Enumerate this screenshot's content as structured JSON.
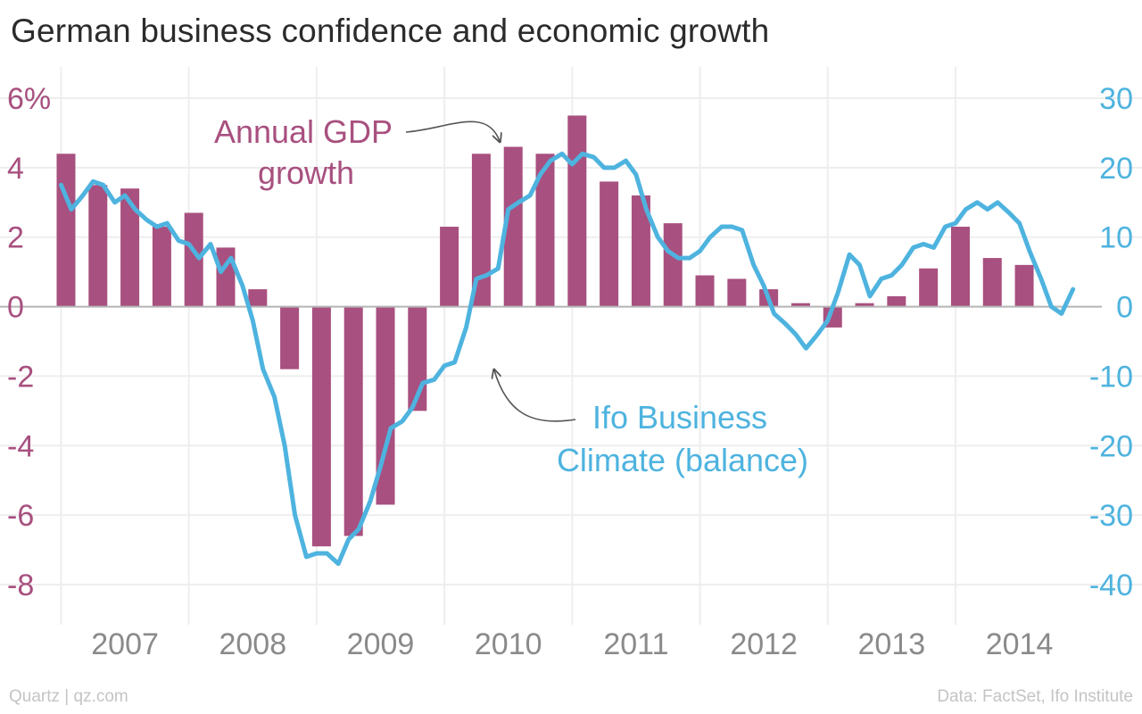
{
  "title": "German business confidence and economic growth",
  "footer": {
    "left": "Quartz | qz.com",
    "right": "Data: FactSet, Ifo Institute"
  },
  "colors": {
    "gdp": "#a8507f",
    "ifo": "#4eb3df",
    "grid": "#eeeeee",
    "zero": "#b5b5b5",
    "tick": "#8a8a8a"
  },
  "chart_data": {
    "type": "bar+line",
    "x_range": [
      2006.85,
      2014.95
    ],
    "x_ticks": [
      {
        "label": "2007",
        "x": 2007
      },
      {
        "label": "2008",
        "x": 2008
      },
      {
        "label": "2009",
        "x": 2009
      },
      {
        "label": "2010",
        "x": 2010
      },
      {
        "label": "2011",
        "x": 2011
      },
      {
        "label": "2012",
        "x": 2012
      },
      {
        "label": "2013",
        "x": 2013
      },
      {
        "label": "2014",
        "x": 2014
      }
    ],
    "y_left": {
      "range": [
        -9,
        6
      ],
      "ticks": [
        6,
        4,
        2,
        0,
        -2,
        -4,
        -6,
        -8
      ],
      "labels": [
        "6%",
        "4",
        "2",
        "0",
        "-2",
        "-4",
        "-6",
        "-8"
      ]
    },
    "y_right": {
      "range": [
        -45,
        30
      ],
      "ticks": [
        30,
        20,
        10,
        0,
        -10,
        -20,
        -30,
        -40
      ],
      "labels": [
        "30",
        "20",
        "10",
        "0",
        "-10",
        "-20",
        "-30",
        "-40"
      ]
    },
    "annotations": [
      {
        "series": "gdp",
        "lines": [
          "Annual GDP",
          "growth"
        ]
      },
      {
        "series": "ifo",
        "lines": [
          "Ifo Business",
          "Climate (balance)"
        ]
      }
    ],
    "series": [
      {
        "name": "Annual GDP growth",
        "key": "gdp",
        "type": "bar",
        "axis": "left",
        "points": [
          [
            2007.0,
            4.4
          ],
          [
            2007.25,
            3.5
          ],
          [
            2007.5,
            3.4
          ],
          [
            2007.75,
            2.3
          ],
          [
            2008.0,
            2.7
          ],
          [
            2008.25,
            1.7
          ],
          [
            2008.5,
            0.5
          ],
          [
            2008.75,
            -1.8
          ],
          [
            2009.0,
            -6.9
          ],
          [
            2009.25,
            -6.6
          ],
          [
            2009.5,
            -5.7
          ],
          [
            2009.75,
            -3.0
          ],
          [
            2010.0,
            2.3
          ],
          [
            2010.25,
            4.4
          ],
          [
            2010.5,
            4.6
          ],
          [
            2010.75,
            4.4
          ],
          [
            2011.0,
            5.5
          ],
          [
            2011.25,
            3.6
          ],
          [
            2011.5,
            3.2
          ],
          [
            2011.75,
            2.4
          ],
          [
            2012.0,
            0.9
          ],
          [
            2012.25,
            0.8
          ],
          [
            2012.5,
            0.5
          ],
          [
            2012.75,
            0.1
          ],
          [
            2013.0,
            -0.6
          ],
          [
            2013.25,
            0.1
          ],
          [
            2013.5,
            0.3
          ],
          [
            2013.75,
            1.1
          ],
          [
            2014.0,
            2.3
          ],
          [
            2014.25,
            1.4
          ],
          [
            2014.5,
            1.2
          ]
        ]
      },
      {
        "name": "Ifo Business Climate (balance)",
        "key": "ifo",
        "type": "line",
        "axis": "right",
        "points": [
          [
            2007.0,
            17.5
          ],
          [
            2007.08,
            14.0
          ],
          [
            2007.17,
            16.0
          ],
          [
            2007.25,
            18.0
          ],
          [
            2007.33,
            17.5
          ],
          [
            2007.42,
            15.0
          ],
          [
            2007.5,
            16.0
          ],
          [
            2007.58,
            14.0
          ],
          [
            2007.67,
            12.5
          ],
          [
            2007.75,
            11.5
          ],
          [
            2007.83,
            12.0
          ],
          [
            2007.92,
            9.5
          ],
          [
            2008.0,
            9.0
          ],
          [
            2008.08,
            7.0
          ],
          [
            2008.17,
            9.0
          ],
          [
            2008.25,
            5.0
          ],
          [
            2008.33,
            7.0
          ],
          [
            2008.42,
            3.0
          ],
          [
            2008.5,
            -2.0
          ],
          [
            2008.58,
            -9.0
          ],
          [
            2008.67,
            -13.0
          ],
          [
            2008.75,
            -20.0
          ],
          [
            2008.83,
            -30.0
          ],
          [
            2008.92,
            -36.0
          ],
          [
            2009.0,
            -35.5
          ],
          [
            2009.08,
            -35.5
          ],
          [
            2009.17,
            -37.0
          ],
          [
            2009.25,
            -33.5
          ],
          [
            2009.33,
            -32.0
          ],
          [
            2009.42,
            -28.0
          ],
          [
            2009.5,
            -23.0
          ],
          [
            2009.58,
            -17.5
          ],
          [
            2009.67,
            -16.5
          ],
          [
            2009.75,
            -14.5
          ],
          [
            2009.83,
            -11.0
          ],
          [
            2009.92,
            -10.5
          ],
          [
            2010.0,
            -8.5
          ],
          [
            2010.08,
            -8.0
          ],
          [
            2010.17,
            -3.0
          ],
          [
            2010.25,
            4.0
          ],
          [
            2010.33,
            4.5
          ],
          [
            2010.42,
            5.5
          ],
          [
            2010.5,
            14.0
          ],
          [
            2010.58,
            15.0
          ],
          [
            2010.67,
            16.0
          ],
          [
            2010.75,
            19.0
          ],
          [
            2010.83,
            21.0
          ],
          [
            2010.92,
            22.0
          ],
          [
            2011.0,
            20.5
          ],
          [
            2011.08,
            22.0
          ],
          [
            2011.17,
            21.5
          ],
          [
            2011.25,
            20.0
          ],
          [
            2011.33,
            20.0
          ],
          [
            2011.42,
            21.0
          ],
          [
            2011.5,
            19.0
          ],
          [
            2011.58,
            14.0
          ],
          [
            2011.67,
            10.0
          ],
          [
            2011.75,
            8.0
          ],
          [
            2011.83,
            7.0
          ],
          [
            2011.92,
            7.0
          ],
          [
            2012.0,
            8.0
          ],
          [
            2012.08,
            10.0
          ],
          [
            2012.17,
            11.5
          ],
          [
            2012.25,
            11.5
          ],
          [
            2012.33,
            11.0
          ],
          [
            2012.42,
            6.0
          ],
          [
            2012.5,
            3.0
          ],
          [
            2012.58,
            -1.0
          ],
          [
            2012.67,
            -2.5
          ],
          [
            2012.75,
            -4.0
          ],
          [
            2012.83,
            -6.0
          ],
          [
            2012.92,
            -4.0
          ],
          [
            2013.0,
            -2.0
          ],
          [
            2013.08,
            2.0
          ],
          [
            2013.17,
            7.5
          ],
          [
            2013.25,
            6.0
          ],
          [
            2013.33,
            1.5
          ],
          [
            2013.42,
            4.0
          ],
          [
            2013.5,
            4.5
          ],
          [
            2013.58,
            6.0
          ],
          [
            2013.67,
            8.5
          ],
          [
            2013.75,
            9.0
          ],
          [
            2013.83,
            8.5
          ],
          [
            2013.92,
            11.5
          ],
          [
            2014.0,
            12.0
          ],
          [
            2014.08,
            14.0
          ],
          [
            2014.17,
            15.0
          ],
          [
            2014.25,
            14.0
          ],
          [
            2014.33,
            15.0
          ],
          [
            2014.42,
            13.5
          ],
          [
            2014.5,
            12.0
          ],
          [
            2014.58,
            8.0
          ],
          [
            2014.67,
            4.0
          ],
          [
            2014.75,
            0.0
          ],
          [
            2014.83,
            -1.0
          ],
          [
            2014.92,
            2.5
          ]
        ]
      }
    ]
  }
}
